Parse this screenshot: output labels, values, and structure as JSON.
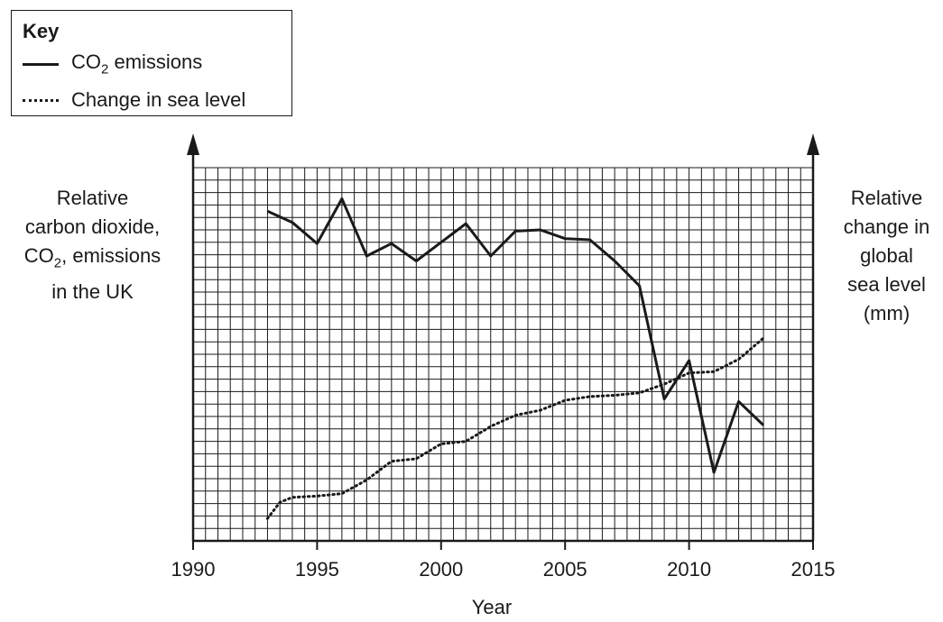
{
  "key": {
    "title": "Key",
    "co2_prefix": "CO",
    "co2_sub": "2",
    "co2_suffix": " emissions",
    "sea_label": "Change in sea level"
  },
  "axes": {
    "left_title_1": "Relative",
    "left_title_2": "carbon dioxide,",
    "left_title_3a": "CO",
    "left_title_3sub": "2",
    "left_title_3b": ", emissions",
    "left_title_4": "in the UK",
    "right_title_1": "Relative",
    "right_title_2": "change in",
    "right_title_3": "global",
    "right_title_4": "sea level",
    "right_title_5": "(mm)",
    "x_title": "Year"
  },
  "chart_data": {
    "type": "line",
    "title": "",
    "xlabel": "Year",
    "ylabel_left": "Relative carbon dioxide, CO2, emissions in the UK",
    "ylabel_right": "Relative change in global sea level (mm)",
    "xlim": [
      1990,
      2015
    ],
    "x_ticks": [
      1990,
      1995,
      2000,
      2005,
      2010,
      2015
    ],
    "grid": true,
    "legend_position": "top-left",
    "y_axis_unlabeled_note": "",
    "series": [
      {
        "name": "CO2 emissions",
        "style": "solid",
        "axis": "left",
        "x": [
          1993,
          1994,
          1995,
          1996,
          1997,
          1998,
          1999,
          2000,
          2001,
          2002,
          2003,
          2004,
          2005,
          2006,
          2007,
          2008,
          2009,
          2010,
          2011,
          2012,
          2013
        ],
        "y": [
          26.5,
          25.6,
          23.9,
          27.5,
          22.9,
          23.9,
          22.5,
          24.0,
          25.5,
          22.9,
          24.9,
          25.0,
          24.3,
          24.2,
          22.5,
          20.5,
          11.4,
          14.5,
          5.5,
          11.2,
          9.3
        ]
      },
      {
        "name": "Change in sea level",
        "style": "dotted",
        "axis": "right",
        "x": [
          1993,
          1993.5,
          1994,
          1995,
          1996,
          1997,
          1998,
          1999,
          2000,
          2001,
          2002,
          2003,
          2004,
          2005,
          2006,
          2007,
          2008,
          2009,
          2010,
          2011,
          2012,
          2013
        ],
        "y": [
          1.8,
          3.1,
          3.5,
          3.6,
          3.8,
          4.9,
          6.4,
          6.6,
          7.8,
          8.0,
          9.2,
          10.1,
          10.5,
          11.3,
          11.6,
          11.7,
          11.9,
          12.6,
          13.5,
          13.6,
          14.6,
          16.3
        ]
      }
    ]
  }
}
